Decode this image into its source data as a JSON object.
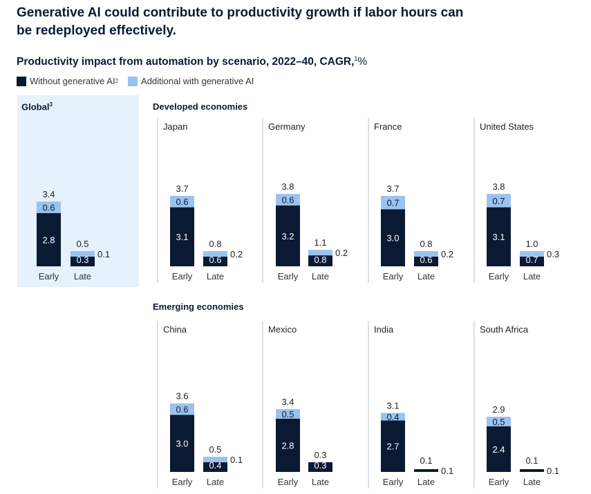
{
  "title_lines": [
    "Generative AI could contribute to productivity growth if labor hours can",
    "be redeployed effectively."
  ],
  "subtitle": "Productivity impact from automation by scenario, 2022–40, CAGR,",
  "subtitle_sup": "1",
  "subtitle_unit": "%",
  "legend": {
    "without": "Without generative AI",
    "without_sup": "2",
    "additional": "Additional with generative AI"
  },
  "colors": {
    "base": "#0b1a33",
    "additional": "#9ac3f0",
    "global_bg": "#e5f1fb"
  },
  "global_label": "Global",
  "global_sup": "3",
  "developed_label": "Developed economies",
  "emerging_label": "Emerging economies",
  "chart_data": {
    "type": "bar",
    "stacked": true,
    "title": "Productivity impact from automation by scenario, 2022–40, CAGR, %",
    "categories": [
      "Early",
      "Late"
    ],
    "series_names": [
      "Without generative AI",
      "Additional with generative AI"
    ],
    "panels": [
      {
        "name": "Global",
        "group": "",
        "early": {
          "base": "2.8",
          "add": "0.6",
          "total": "3.4"
        },
        "late": {
          "base": "0.3",
          "add": "0.1",
          "total": "0.5"
        }
      },
      {
        "name": "Japan",
        "group": "Developed economies",
        "early": {
          "base": "3.1",
          "add": "0.6",
          "total": "3.7"
        },
        "late": {
          "base": "0.6",
          "add": "0.2",
          "total": "0.8"
        }
      },
      {
        "name": "Germany",
        "group": "Developed economies",
        "early": {
          "base": "3.2",
          "add": "0.6",
          "total": "3.8"
        },
        "late": {
          "base": "0.8",
          "add": "0.2",
          "total": "1.1"
        }
      },
      {
        "name": "France",
        "group": "Developed economies",
        "early": {
          "base": "3.0",
          "add": "0.7",
          "total": "3.7"
        },
        "late": {
          "base": "0.6",
          "add": "0.2",
          "total": "0.8"
        }
      },
      {
        "name": "United States",
        "group": "Developed economies",
        "early": {
          "base": "3.1",
          "add": "0.7",
          "total": "3.8"
        },
        "late": {
          "base": "0.7",
          "add": "0.3",
          "total": "1.0"
        }
      },
      {
        "name": "China",
        "group": "Emerging economies",
        "early": {
          "base": "3.0",
          "add": "0.6",
          "total": "3.6"
        },
        "late": {
          "base": "0.4",
          "add": "0.1",
          "total": "0.5"
        }
      },
      {
        "name": "Mexico",
        "group": "Emerging economies",
        "early": {
          "base": "2.8",
          "add": "0.5",
          "total": "3.4"
        },
        "late": {
          "base": "0.3",
          "add": "0.0",
          "total": "0.3"
        }
      },
      {
        "name": "India",
        "group": "Emerging economies",
        "early": {
          "base": "2.7",
          "add": "0.4",
          "total": "3.1"
        },
        "late": {
          "base": "0.1",
          "add": "0.0",
          "total": "0.1"
        },
        "late_side_label": "0.1"
      },
      {
        "name": "South Africa",
        "group": "Emerging economies",
        "early": {
          "base": "2.4",
          "add": "0.5",
          "total": "2.9"
        },
        "late": {
          "base": "0.1",
          "add": "0.0",
          "total": "0.1"
        },
        "late_side_label": "0.1"
      }
    ]
  }
}
